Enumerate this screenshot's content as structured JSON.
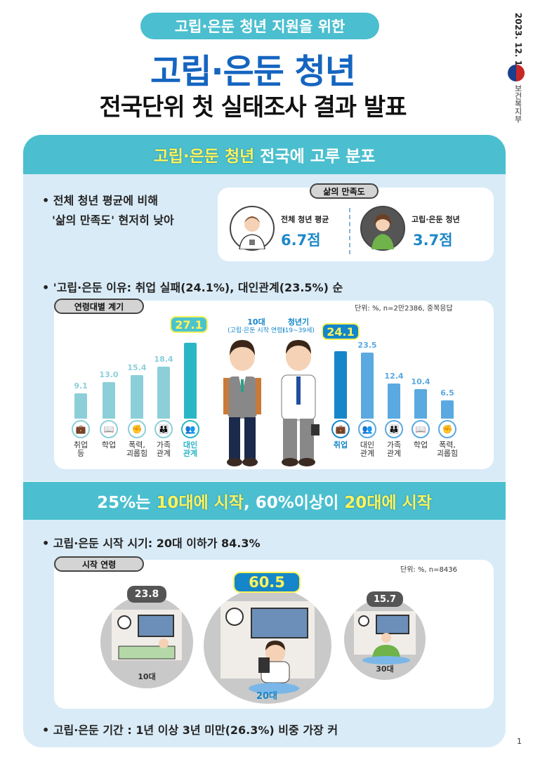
{
  "header": {
    "pill": "고립·은둔 청년 지원을 위한",
    "title": "고립·은둔 청년",
    "subtitle": "전국단위 첫 실태조사 결과 발표",
    "date": "2023. 12. 13.",
    "ministry": "보건복지부"
  },
  "section1": {
    "band_highlight": "고립·은둔 청년",
    "band_rest": " 전국에 고루 분포",
    "bullet1_line1": "• 전체 청년 평균에 비해",
    "bullet1_line2": "'삶의 만족도' 현저히 낮아",
    "satisfaction": {
      "tag": "삶의 만족도",
      "left_label": "전체 청년 평균",
      "left_value": "6.7점",
      "right_label": "고립·은둔 청년",
      "right_value": "3.7점"
    },
    "bullet2": "• '고립·은둔 이유: 취업 실패(24.1%), 대인관계(23.5%) 순",
    "chart_tag": "연령대별 계기",
    "unit_note": "단위: %, n=2만2386, 중복응답",
    "teen_title": "10대",
    "teen_sub": "(고립·은둔 시작 연령)",
    "youth_title": "청년기",
    "youth_sub": "(19~39세)"
  },
  "chart_data": [
    {
      "type": "bar",
      "title": "10대",
      "categories": [
        "취업 등",
        "학업",
        "폭력, 괴롭힘",
        "가족 관계",
        "대인 관계"
      ],
      "values": [
        9.1,
        13.0,
        15.4,
        18.4,
        27.1
      ],
      "highlight": "대인 관계",
      "color": "#8ccfd9",
      "highlight_color": "#29b6c6"
    },
    {
      "type": "bar",
      "title": "청년기",
      "categories": [
        "취업",
        "대인 관계",
        "가족 관계",
        "학업",
        "폭력, 괴롭힘"
      ],
      "values": [
        24.1,
        23.5,
        12.4,
        10.4,
        6.5
      ],
      "highlight": "취업",
      "color": "#5aa9e0",
      "highlight_color": "#1486c9"
    }
  ],
  "section2": {
    "band_p1": "25%는 ",
    "band_h1": "10대에 시작",
    "band_p2": ", 60%이상이 ",
    "band_h2": "20대에 시작",
    "bullet1": "• 고립·은둔 시작 시기: 20대 이하가 84.3%",
    "tag": "시작 연령",
    "unit_note": "단위: %, n=8436",
    "circles": [
      {
        "label": "10대",
        "value": "23.8"
      },
      {
        "label": "20대",
        "value": "60.5"
      },
      {
        "label": "30대",
        "value": "15.7"
      }
    ],
    "bullet2": "• 고립·은둔 기간 : 1년 이상 3년 미만(26.3%) 비중 가장 커"
  },
  "page_number": "1"
}
